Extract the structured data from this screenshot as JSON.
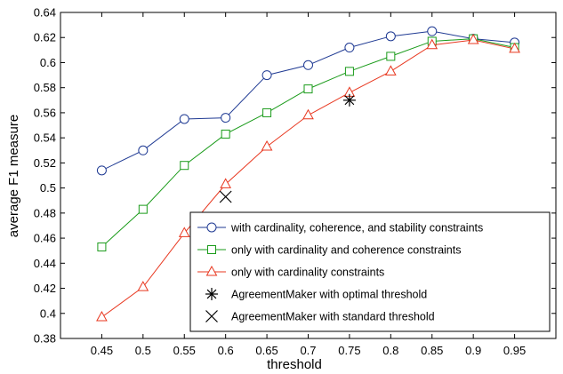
{
  "chart_data": {
    "type": "line",
    "title": "",
    "xlabel": "threshold",
    "ylabel": "average F1 measure",
    "xlim": [
      0.4,
      1.0
    ],
    "ylim": [
      0.38,
      0.64
    ],
    "x_ticks": [
      "0.45",
      "0.5",
      "0.55",
      "0.6",
      "0.65",
      "0.7",
      "0.75",
      "0.8",
      "0.85",
      "0.9",
      "0.95"
    ],
    "y_ticks": [
      "0.38",
      "0.4",
      "0.42",
      "0.44",
      "0.46",
      "0.48",
      "0.5",
      "0.52",
      "0.54",
      "0.56",
      "0.58",
      "0.6",
      "0.62",
      "0.64"
    ],
    "grid": false,
    "legend_position": "bottom-right",
    "x": [
      0.45,
      0.5,
      0.55,
      0.6,
      0.65,
      0.7,
      0.75,
      0.8,
      0.85,
      0.9,
      0.95
    ],
    "series": [
      {
        "name": "with cardinality, coherence, and stability constraints",
        "color": "#1f3a93",
        "marker": "circle",
        "values": [
          0.514,
          0.53,
          0.555,
          0.556,
          0.59,
          0.598,
          0.612,
          0.621,
          0.625,
          0.619,
          0.616
        ]
      },
      {
        "name": "only with cardinality and coherence constraints",
        "color": "#1a9b1a",
        "marker": "square",
        "values": [
          0.453,
          0.483,
          0.518,
          0.543,
          0.56,
          0.579,
          0.593,
          0.605,
          0.617,
          0.619,
          0.612
        ]
      },
      {
        "name": "only with cardinality constraints",
        "color": "#e8371f",
        "marker": "triangle",
        "values": [
          0.397,
          0.421,
          0.464,
          0.503,
          0.533,
          0.558,
          0.576,
          0.593,
          0.614,
          0.618,
          0.611
        ]
      }
    ],
    "points": [
      {
        "name": "AgreementMaker with optimal threshold",
        "marker": "asterisk",
        "color": "#000000",
        "x": 0.75,
        "y": 0.57
      },
      {
        "name": "AgreementMaker with standard threshold",
        "marker": "x",
        "color": "#000000",
        "x": 0.6,
        "y": 0.493
      }
    ]
  }
}
